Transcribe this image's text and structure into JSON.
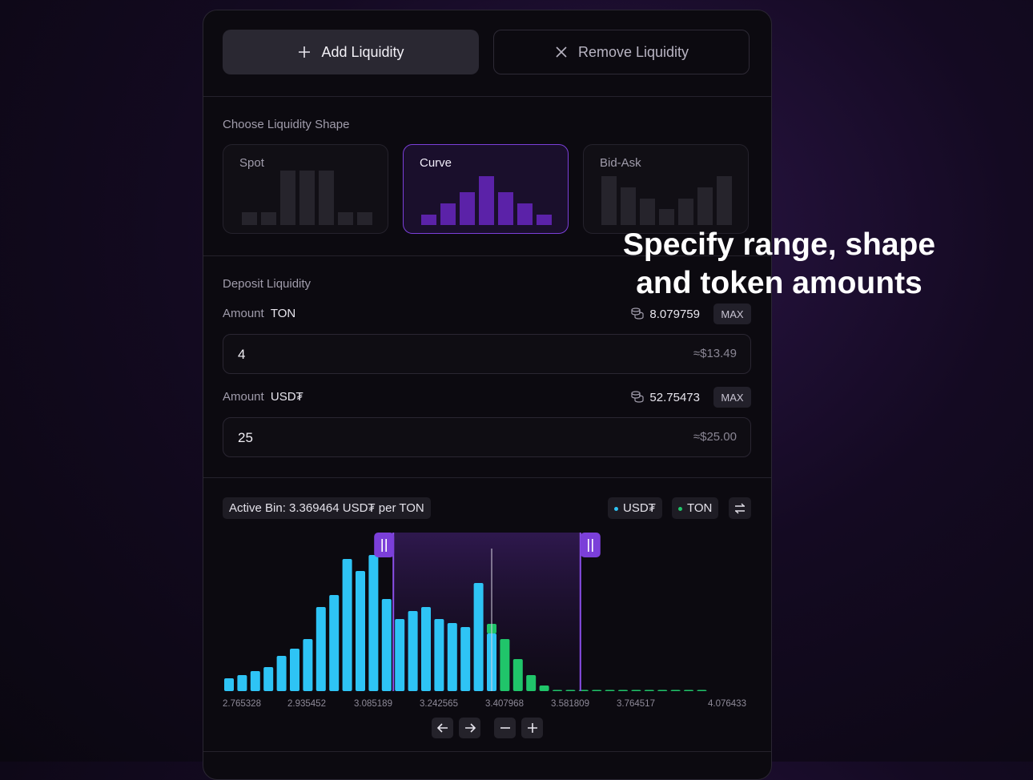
{
  "tabs": {
    "add_label": "Add Liquidity",
    "remove_label": "Remove Liquidity"
  },
  "shape_section": {
    "title": "Choose Liquidity Shape",
    "options": [
      {
        "label": "Spot",
        "selected": false
      },
      {
        "label": "Curve",
        "selected": true
      },
      {
        "label": "Bid-Ask",
        "selected": false
      }
    ]
  },
  "deposit": {
    "title": "Deposit Liquidity",
    "amount_label": "Amount",
    "max_label": "MAX",
    "tokens": [
      {
        "symbol": "TON",
        "balance": "8.079759",
        "value": "4",
        "usd": "≈$13.49"
      },
      {
        "symbol": "USD₮",
        "balance": "52.75473",
        "value": "25",
        "usd": "≈$25.00"
      }
    ]
  },
  "chart_header": {
    "active_bin": "Active Bin: 3.369464 USD₮ per TON",
    "legend": [
      {
        "name": "USD₮",
        "color": "#2ec4f5"
      },
      {
        "name": "TON",
        "color": "#20c56a"
      }
    ]
  },
  "chart_data": {
    "type": "bar",
    "x_tick_labels": [
      "2.765328",
      "2.935452",
      "3.085189",
      "3.242565",
      "3.407968",
      "3.581809",
      "3.764517",
      "4.076433"
    ],
    "usdt_values": [
      16,
      20,
      25,
      30,
      44,
      53,
      65,
      105,
      120,
      165,
      150,
      170,
      115,
      90,
      100,
      105,
      90,
      85,
      80,
      135,
      72
    ],
    "ton_values": [
      0,
      0,
      0,
      0,
      0,
      0,
      0,
      0,
      0,
      0,
      0,
      0,
      0,
      0,
      0,
      0,
      0,
      0,
      0,
      0,
      12,
      65,
      40,
      20,
      7,
      1,
      1,
      1,
      1,
      1,
      1,
      1,
      1,
      1,
      1,
      1,
      1
    ],
    "selected_range_bins": [
      13,
      27
    ],
    "active_bin_index": 20,
    "ylim": [
      0,
      175
    ]
  },
  "overlay": {
    "line1": "Specify range, shape",
    "line2": "and token amounts"
  }
}
